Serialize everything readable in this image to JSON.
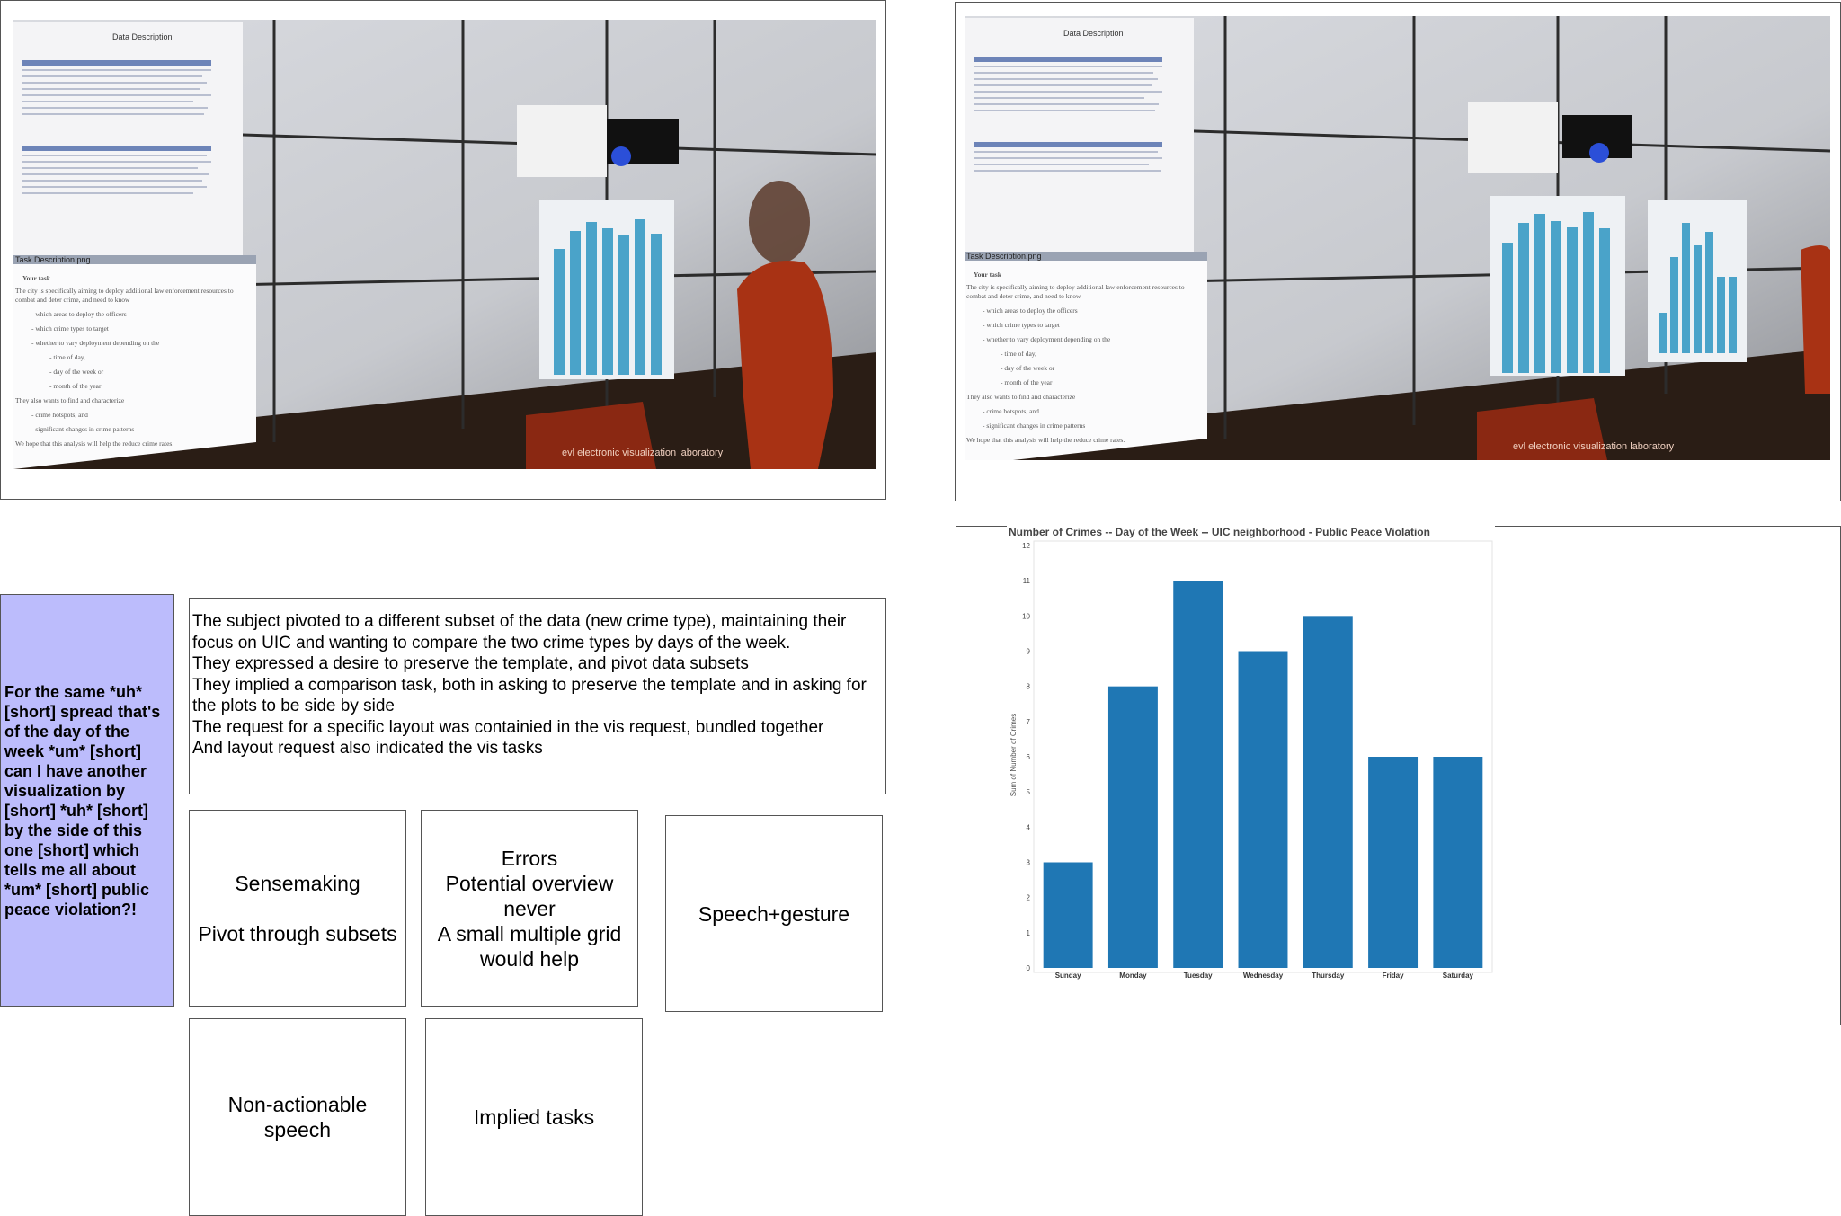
{
  "photos": {
    "left_alt": "Photo of a tiled display wall with a task description window and a bar chart, a person standing at right",
    "right_alt": "Photo of the same tiled display wall now showing two bar charts side by side",
    "logo_text": "evl electronic visualization laboratory",
    "window_titles": [
      "Data Description",
      "Task Description.png"
    ],
    "task_panel": {
      "heading": "Your task",
      "lines": [
        "The city is specifically aiming to deploy additional law enforcement resources to",
        "combat and deter crime, and need to know",
        "- which areas to deploy the officers",
        "- which crime types to target",
        "- whether to vary deployment depending on the",
        "- time of day,",
        "- day of the week or",
        "- month of the year",
        "They also wants to find and characterize",
        "- crime hotspots, and",
        "- significant changes in crime patterns",
        "We hope that this analysis will help the reduce crime rates."
      ]
    }
  },
  "quote": "For the same *uh* [short] spread that's of the day of the week *um* [short] can I have another visualization by [short] *uh* [short] by the side of this one [short] which tells me all about *um* [short] public peace violation?!",
  "notes": [
    "The subject pivoted to a different subset of the data (new crime type), maintaining their focus on UIC and wanting to compare the two crime types by days of the week.",
    "They expressed a desire to preserve the template, and pivot data subsets",
    "They implied a comparison task, both in asking to preserve the template and in asking for the plots to be side by side",
    "The request for a specific layout was containied in the vis request, bundled together",
    "And layout request also indicated the vis tasks"
  ],
  "tags": {
    "sensemaking": {
      "line1": "Sensemaking",
      "line2": "Pivot through subsets"
    },
    "errors": {
      "line1": "Errors",
      "line2": "Potential overview never",
      "line3": "A small multiple grid would help"
    },
    "speech_gesture": "Speech+gesture",
    "non_actionable": "Non-actionable speech",
    "implied": "Implied tasks"
  },
  "colors": {
    "bar": "#1f77b4",
    "quote_bg": "#bcbcfc"
  },
  "chart_data": {
    "type": "bar",
    "title": "Number of Crimes -- Day of the Week -- UIC neighborhood - Public Peace Violation",
    "xlabel": "",
    "ylabel": "Sum of Number of Crimes",
    "categories": [
      "Sunday",
      "Monday",
      "Tuesday",
      "Wednesday",
      "Thursday",
      "Friday",
      "Saturday"
    ],
    "values": [
      3,
      8,
      11,
      9,
      10,
      6,
      6
    ],
    "ylim": [
      0,
      12
    ],
    "yticks": [
      "0",
      "1",
      "2",
      "3",
      "4",
      "5",
      "6",
      "7",
      "8",
      "9",
      "10",
      "11",
      "12"
    ],
    "grid": false
  }
}
